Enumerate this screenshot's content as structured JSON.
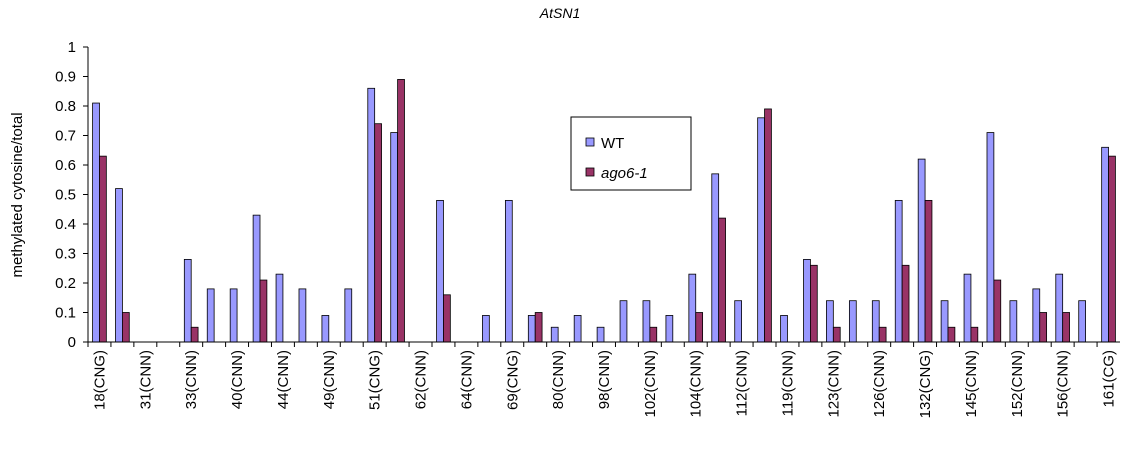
{
  "chart_data": {
    "type": "bar",
    "title": "AtSN1",
    "y_label": "methylated cytosine/total",
    "categories": [
      "18(CNG)",
      null,
      "31(CNN)",
      null,
      "33(CNN)",
      null,
      "40(CNN)",
      null,
      "44(CNN)",
      null,
      "49(CNN)",
      null,
      "51(CNG)",
      null,
      "62(CNN)",
      null,
      "64(CNN)",
      null,
      "69(CNG)",
      null,
      "80(CNN)",
      null,
      "98(CNN)",
      null,
      "102(CNN)",
      null,
      "104(CNN)",
      null,
      "112(CNN)",
      null,
      "119(CNN)",
      null,
      "123(CNN)",
      null,
      "126(CNN)",
      null,
      "132(CNG)",
      null,
      "145(CNN)",
      null,
      "152(CNN)",
      null,
      "156(CNN)",
      null,
      "161(CG)"
    ],
    "series": [
      {
        "name": "WT",
        "color": "#9999ff",
        "values": [
          0.81,
          0.52,
          0,
          0,
          0.28,
          0.18,
          0.18,
          0.43,
          0.23,
          0.18,
          0.09,
          0.18,
          0.86,
          0.71,
          0,
          0.48,
          0,
          0.09,
          0.48,
          0.09,
          0.05,
          0.09,
          0.05,
          0.14,
          0.14,
          0.09,
          0.23,
          0.57,
          0.14,
          0.76,
          0.09,
          0.28,
          0.14,
          0.14,
          0.14,
          0.48,
          0.62,
          0.14,
          0.23,
          0.71,
          0.14,
          0.18,
          0.23,
          0.14,
          0.66
        ]
      },
      {
        "name": "ago6-1",
        "color": "#993366",
        "values": [
          0.63,
          0.1,
          0,
          0,
          0.05,
          0,
          0,
          0.21,
          0,
          0,
          0,
          0,
          0.74,
          0.89,
          0,
          0.16,
          0,
          0,
          0,
          0.1,
          0,
          0,
          0,
          0,
          0.05,
          0,
          0.1,
          0.42,
          0,
          0.79,
          0,
          0.26,
          0.05,
          0,
          0.05,
          0.26,
          0.48,
          0.05,
          0.05,
          0.21,
          0,
          0.1,
          0.1,
          0,
          0.63
        ]
      }
    ],
    "ylim": [
      0,
      1
    ],
    "yticks": [
      0,
      0.1,
      0.2,
      0.3,
      0.4,
      0.5,
      0.6,
      0.7,
      0.8,
      0.9,
      1
    ],
    "grid": false
  }
}
